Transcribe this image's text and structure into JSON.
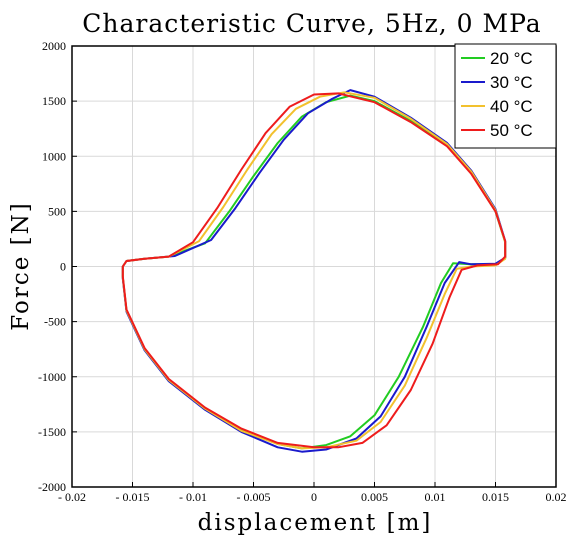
{
  "chart_data": {
    "type": "line",
    "title": "Characteristic Curve, 5Hz, 0 MPa",
    "xlabel": "displacement [m]",
    "ylabel": "Force [N]",
    "xlim": [
      -0.02,
      0.02
    ],
    "ylim": [
      -2000,
      2000
    ],
    "x_ticks": [
      "- 0.02",
      "- 0.015",
      "- 0.01",
      "- 0.005",
      "0",
      "0.005",
      "0.01",
      "0.015",
      "0.02"
    ],
    "y_ticks": [
      "2000",
      "1500",
      "1000",
      "500",
      "0",
      "-500",
      "-1000",
      "-1500",
      "-2000"
    ],
    "grid": true,
    "legend_position": "top-right",
    "series": [
      {
        "name": "20 °C",
        "color": "#22cc22",
        "points": [
          [
            -0.0158,
            0
          ],
          [
            -0.0155,
            50
          ],
          [
            -0.014,
            70
          ],
          [
            -0.012,
            90
          ],
          [
            -0.009,
            210
          ],
          [
            -0.007,
            500
          ],
          [
            -0.005,
            820
          ],
          [
            -0.003,
            1120
          ],
          [
            -0.001,
            1360
          ],
          [
            0.001,
            1490
          ],
          [
            0.003,
            1550
          ],
          [
            0.005,
            1500
          ],
          [
            0.008,
            1320
          ],
          [
            0.011,
            1100
          ],
          [
            0.013,
            850
          ],
          [
            0.015,
            500
          ],
          [
            0.0158,
            220
          ],
          [
            0.0158,
            80
          ],
          [
            0.015,
            20
          ],
          [
            0.013,
            20
          ],
          [
            0.0115,
            30
          ],
          [
            0.0105,
            -150
          ],
          [
            0.009,
            -550
          ],
          [
            0.007,
            -1000
          ],
          [
            0.005,
            -1350
          ],
          [
            0.003,
            -1540
          ],
          [
            0.001,
            -1620
          ],
          [
            -0.001,
            -1650
          ],
          [
            -0.003,
            -1610
          ],
          [
            -0.006,
            -1480
          ],
          [
            -0.009,
            -1290
          ],
          [
            -0.012,
            -1030
          ],
          [
            -0.014,
            -750
          ],
          [
            -0.0155,
            -400
          ],
          [
            -0.0158,
            -100
          ],
          [
            -0.0158,
            0
          ]
        ]
      },
      {
        "name": "30 °C",
        "color": "#1a1acc",
        "points": [
          [
            -0.0158,
            0
          ],
          [
            -0.0155,
            50
          ],
          [
            -0.014,
            70
          ],
          [
            -0.0115,
            95
          ],
          [
            -0.0085,
            240
          ],
          [
            -0.0065,
            530
          ],
          [
            -0.0045,
            850
          ],
          [
            -0.0025,
            1150
          ],
          [
            -0.0005,
            1390
          ],
          [
            0.0015,
            1520
          ],
          [
            0.003,
            1600
          ],
          [
            0.005,
            1540
          ],
          [
            0.008,
            1350
          ],
          [
            0.011,
            1120
          ],
          [
            0.013,
            870
          ],
          [
            0.015,
            520
          ],
          [
            0.0158,
            230
          ],
          [
            0.0158,
            80
          ],
          [
            0.015,
            25
          ],
          [
            0.013,
            20
          ],
          [
            0.012,
            40
          ],
          [
            0.0108,
            -150
          ],
          [
            0.0093,
            -550
          ],
          [
            0.0075,
            -1000
          ],
          [
            0.0055,
            -1360
          ],
          [
            0.0035,
            -1560
          ],
          [
            0.001,
            -1660
          ],
          [
            -0.001,
            -1680
          ],
          [
            -0.003,
            -1640
          ],
          [
            -0.006,
            -1500
          ],
          [
            -0.009,
            -1300
          ],
          [
            -0.012,
            -1040
          ],
          [
            -0.014,
            -760
          ],
          [
            -0.0155,
            -410
          ],
          [
            -0.0158,
            -110
          ],
          [
            -0.0158,
            0
          ]
        ]
      },
      {
        "name": "40 °C",
        "color": "#f2c12e",
        "points": [
          [
            -0.0158,
            0
          ],
          [
            -0.0155,
            50
          ],
          [
            -0.014,
            70
          ],
          [
            -0.012,
            90
          ],
          [
            -0.0095,
            230
          ],
          [
            -0.0075,
            540
          ],
          [
            -0.0055,
            880
          ],
          [
            -0.0035,
            1200
          ],
          [
            -0.0015,
            1430
          ],
          [
            0.0005,
            1540
          ],
          [
            0.0025,
            1580
          ],
          [
            0.005,
            1530
          ],
          [
            0.008,
            1340
          ],
          [
            0.011,
            1110
          ],
          [
            0.013,
            860
          ],
          [
            0.015,
            510
          ],
          [
            0.0158,
            220
          ],
          [
            0.0158,
            70
          ],
          [
            0.015,
            10
          ],
          [
            0.013,
            0
          ],
          [
            0.0118,
            -20
          ],
          [
            0.0108,
            -250
          ],
          [
            0.0093,
            -650
          ],
          [
            0.0075,
            -1080
          ],
          [
            0.0055,
            -1410
          ],
          [
            0.0035,
            -1580
          ],
          [
            0.001,
            -1640
          ],
          [
            -0.001,
            -1650
          ],
          [
            -0.003,
            -1610
          ],
          [
            -0.006,
            -1490
          ],
          [
            -0.009,
            -1290
          ],
          [
            -0.012,
            -1030
          ],
          [
            -0.014,
            -750
          ],
          [
            -0.0155,
            -400
          ],
          [
            -0.0158,
            -100
          ],
          [
            -0.0158,
            0
          ]
        ]
      },
      {
        "name": "50 °C",
        "color": "#ee1c1c",
        "points": [
          [
            -0.0158,
            0
          ],
          [
            -0.0155,
            50
          ],
          [
            -0.014,
            70
          ],
          [
            -0.012,
            90
          ],
          [
            -0.01,
            220
          ],
          [
            -0.008,
            530
          ],
          [
            -0.006,
            880
          ],
          [
            -0.004,
            1210
          ],
          [
            -0.002,
            1450
          ],
          [
            0,
            1560
          ],
          [
            0.002,
            1570
          ],
          [
            0.005,
            1490
          ],
          [
            0.008,
            1310
          ],
          [
            0.011,
            1090
          ],
          [
            0.013,
            840
          ],
          [
            0.015,
            500
          ],
          [
            0.0158,
            230
          ],
          [
            0.0158,
            90
          ],
          [
            0.0152,
            20
          ],
          [
            0.0135,
            10
          ],
          [
            0.0122,
            -30
          ],
          [
            0.0112,
            -280
          ],
          [
            0.0098,
            -700
          ],
          [
            0.008,
            -1120
          ],
          [
            0.006,
            -1440
          ],
          [
            0.004,
            -1600
          ],
          [
            0.002,
            -1640
          ],
          [
            0,
            -1640
          ],
          [
            -0.003,
            -1600
          ],
          [
            -0.006,
            -1470
          ],
          [
            -0.009,
            -1280
          ],
          [
            -0.012,
            -1020
          ],
          [
            -0.014,
            -740
          ],
          [
            -0.0155,
            -390
          ],
          [
            -0.0158,
            -90
          ],
          [
            -0.0158,
            0
          ]
        ]
      }
    ]
  }
}
